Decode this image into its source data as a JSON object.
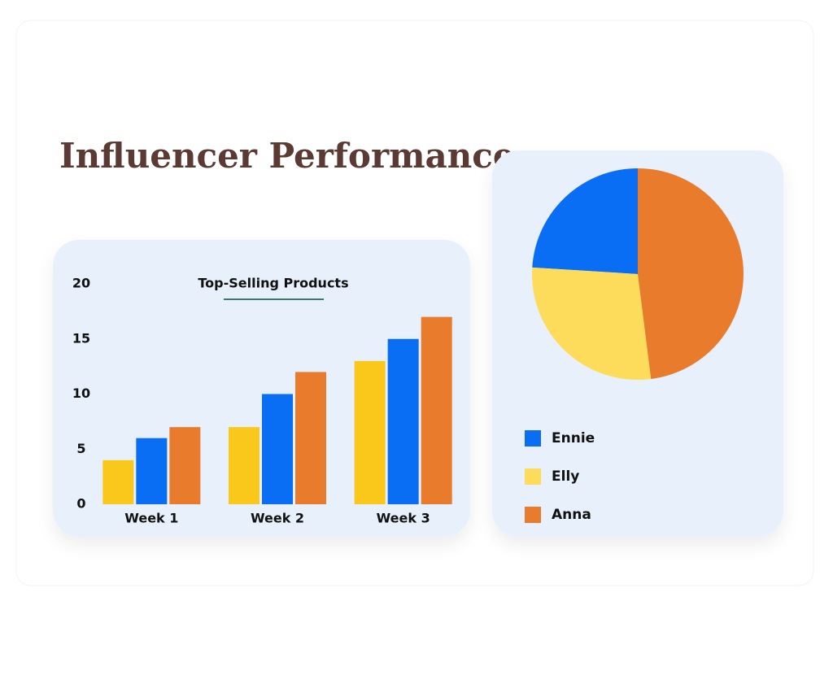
{
  "title": "Influencer Performance",
  "chart_data": [
    {
      "type": "bar",
      "title": "Top-Selling Products",
      "categories": [
        "Week 1",
        "Week 2",
        "Week 3"
      ],
      "series": [
        {
          "color": "#f9c81a",
          "values": [
            4,
            7,
            13
          ]
        },
        {
          "color": "#0a6ef5",
          "values": [
            6,
            10,
            15
          ]
        },
        {
          "color": "#e97c2c",
          "values": [
            7,
            12,
            17
          ]
        }
      ],
      "ylim": [
        0,
        20
      ],
      "yticks": [
        0,
        5,
        10,
        15,
        20
      ]
    },
    {
      "type": "pie",
      "categories": [
        "Ennie",
        "Elly",
        "Anna"
      ],
      "values": [
        24,
        28,
        48
      ],
      "colors": [
        "#0a6ef5",
        "#fddc5c",
        "#e97c2c"
      ]
    }
  ]
}
